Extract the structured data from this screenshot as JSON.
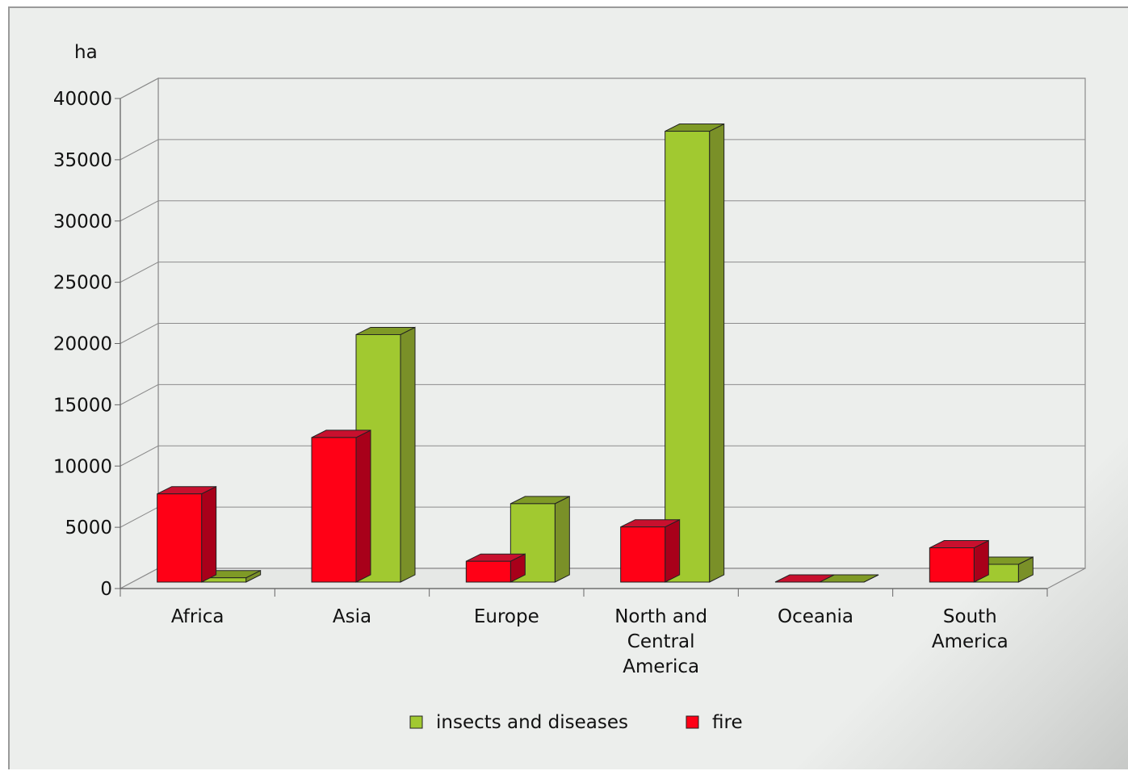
{
  "chart_data": {
    "type": "bar",
    "ylabel": "ha",
    "ylim": [
      0,
      40000
    ],
    "yticks": [
      0,
      5000,
      10000,
      15000,
      20000,
      25000,
      30000,
      35000,
      40000
    ],
    "grid": true,
    "legend_position": "bottom-center",
    "categories": [
      [
        "Africa"
      ],
      [
        "Asia"
      ],
      [
        "Europe"
      ],
      [
        "North and",
        "Central",
        "America"
      ],
      [
        "Oceania"
      ],
      [
        "South",
        "America"
      ]
    ],
    "series": [
      {
        "name": "fire",
        "color": "#ff0016",
        "side_color": "#a8001a",
        "top_color": "#c8102e",
        "values": [
          7200,
          11800,
          1700,
          4500,
          0,
          2800
        ]
      },
      {
        "name": "insects and diseases",
        "color": "#a1c930",
        "side_color": "#7a9028",
        "top_color": "#7f9a26",
        "values": [
          350,
          20200,
          6400,
          36800,
          0,
          1450
        ]
      }
    ],
    "legend": [
      {
        "name": "insects and diseases",
        "color": "#a1c930"
      },
      {
        "name": "fire",
        "color": "#ff0016"
      }
    ]
  }
}
